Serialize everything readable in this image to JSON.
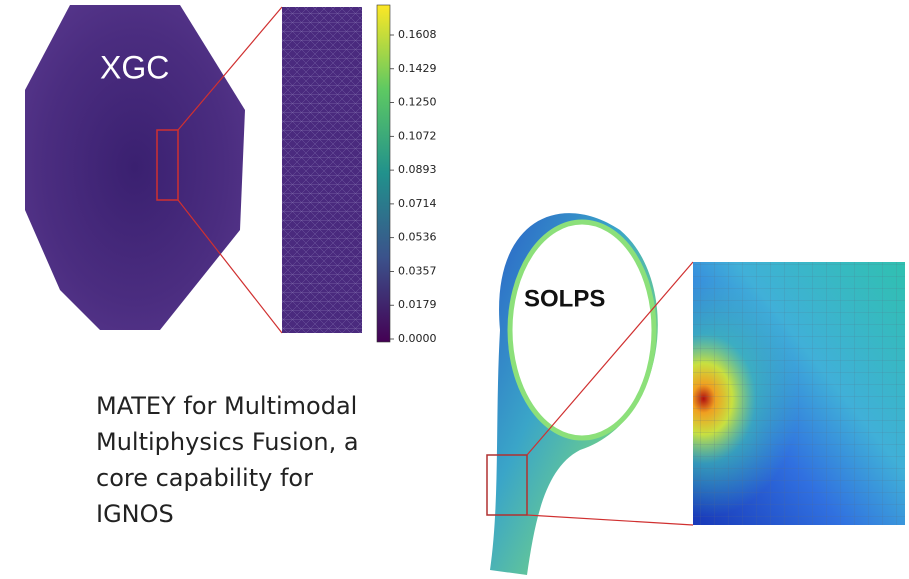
{
  "xgc": {
    "label": "XGC",
    "colorbar_ticks": [
      "0.1608",
      "0.1429",
      "0.1250",
      "0.1072",
      "0.0893",
      "0.0714",
      "0.0536",
      "0.0357",
      "0.0179",
      "0.0000"
    ]
  },
  "solps": {
    "label": "SOLPS"
  },
  "caption": {
    "lines": [
      "MATEY for Multimodal",
      "Multiphysics Fusion, a",
      "core capability for",
      "IGNOS"
    ]
  }
}
